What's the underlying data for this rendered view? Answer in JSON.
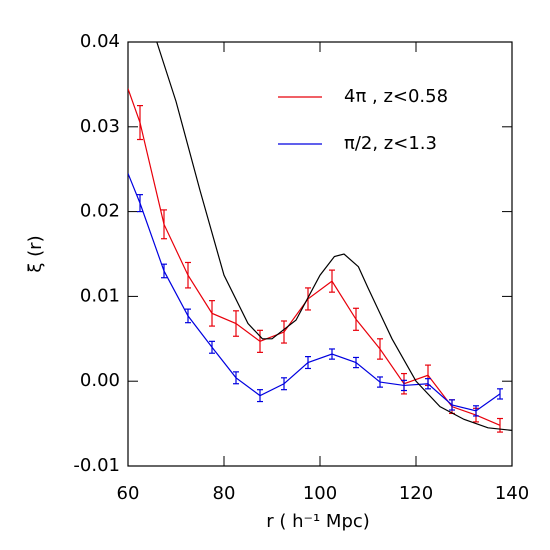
{
  "chart_data": {
    "type": "line",
    "x_label": "r ( h⁻¹ Mpc)",
    "y_label": "ξ (r)",
    "xlim": [
      60,
      140
    ],
    "xticks": [
      60,
      80,
      100,
      120,
      140
    ],
    "ylim": [
      -0.01,
      0.04
    ],
    "yticks": [
      -0.01,
      {
        "value": 0,
        "label": "0.00"
      },
      0.01,
      0.02,
      0.03,
      0.04
    ],
    "legend": "upper right",
    "series": [
      {
        "name": "4π , z<0.58",
        "color": "#e8000b",
        "x": [
          60,
          62.5,
          67.5,
          72.5,
          77.5,
          82.5,
          87.5,
          92.5,
          97.5,
          102.5,
          107.5,
          112.5,
          117.5,
          122.5,
          127.5,
          132.5,
          137.5
        ],
        "values": [
          0.0345,
          0.0305,
          0.0185,
          0.0125,
          0.008,
          0.0068,
          0.0047,
          0.0058,
          0.0097,
          0.0118,
          0.0073,
          0.0038,
          -0.0003,
          0.0007,
          -0.003,
          -0.004,
          -0.0052
        ],
        "errors": [
          null,
          0.002,
          0.0017,
          0.0015,
          0.0015,
          0.0015,
          0.0013,
          0.0013,
          0.0013,
          0.0013,
          0.0013,
          0.0012,
          0.0012,
          0.0012,
          0.0008,
          0.0008,
          0.0008
        ]
      },
      {
        "name": "π/2, z<1.3",
        "color": "#0000e0",
        "x": [
          60,
          62.5,
          67.5,
          72.5,
          77.5,
          82.5,
          87.5,
          92.5,
          97.5,
          102.5,
          107.5,
          112.5,
          117.5,
          122.5,
          127.5,
          132.5,
          137.5
        ],
        "values": [
          0.0245,
          0.021,
          0.013,
          0.0077,
          0.004,
          0.0004,
          -0.0017,
          -0.0003,
          0.0022,
          0.0032,
          0.0022,
          -0.0001,
          -0.0005,
          -0.0003,
          -0.0028,
          -0.0035,
          -0.0015
        ],
        "errors": [
          null,
          0.001,
          0.0008,
          0.0008,
          0.0007,
          0.0007,
          0.0007,
          0.0007,
          0.0007,
          0.0006,
          0.0006,
          0.0006,
          0.0006,
          0.0006,
          0.0006,
          0.0006,
          0.0006
        ]
      },
      {
        "color": "#000000",
        "x": [
          66,
          70,
          75,
          80,
          85,
          88,
          90,
          95,
          100,
          103,
          105,
          108,
          110,
          115,
          120,
          125,
          130,
          135,
          140
        ],
        "values": [
          0.04,
          0.033,
          0.0225,
          0.0125,
          0.0068,
          0.005,
          0.005,
          0.0072,
          0.0125,
          0.0147,
          0.015,
          0.0135,
          0.011,
          0.005,
          0.0,
          -0.003,
          -0.0045,
          -0.0055,
          -0.0058
        ]
      }
    ]
  }
}
